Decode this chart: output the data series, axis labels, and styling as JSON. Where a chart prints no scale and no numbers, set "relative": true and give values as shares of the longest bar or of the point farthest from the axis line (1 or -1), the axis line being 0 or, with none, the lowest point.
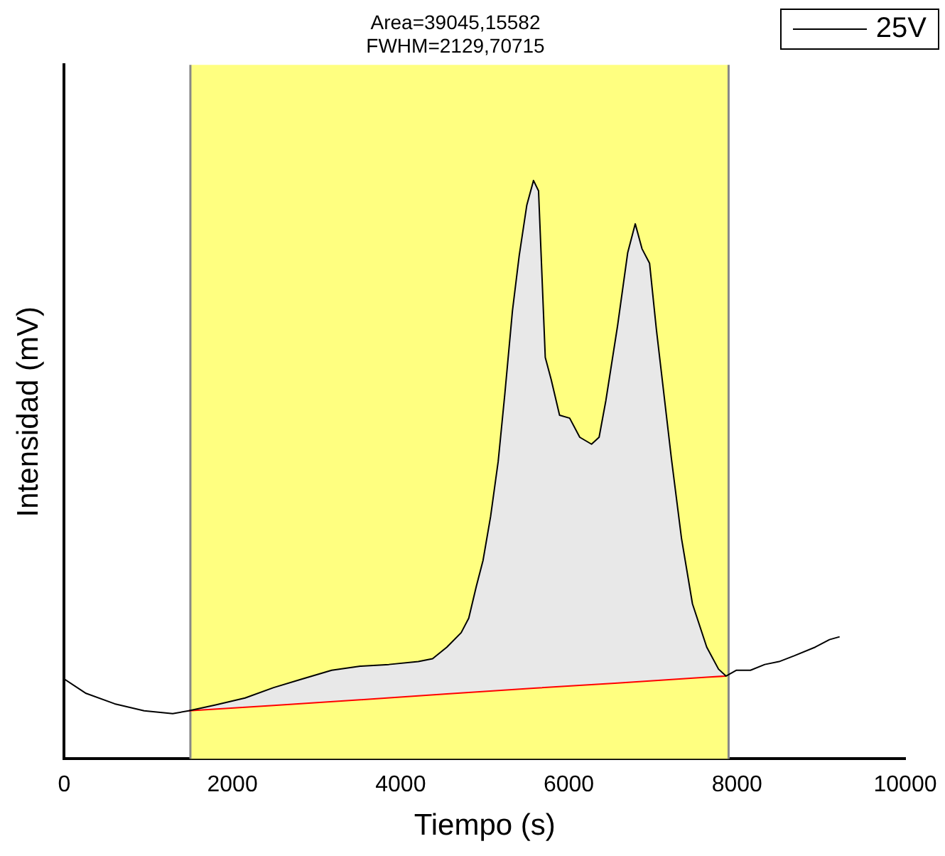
{
  "chart_data": {
    "type": "line",
    "annotations": [
      "Area=39045,15582",
      "FWHM=2129,70715"
    ],
    "xlabel": "Tiempo (s)",
    "ylabel": "Intensidad (mV)",
    "relative": true,
    "xlim": [
      0,
      10000
    ],
    "xticks": [
      0,
      2000,
      4000,
      6000,
      8000,
      10000
    ],
    "grid": false,
    "legend": "top right",
    "marker": "none",
    "bands": [
      {
        "axis": "x",
        "from": 1500,
        "to": 7900,
        "color": "#ffff80"
      }
    ],
    "ref_lines": [
      {
        "axis": "x",
        "value": 1500,
        "color": "#888888"
      },
      {
        "axis": "x",
        "value": 7900,
        "color": "#888888"
      }
    ],
    "series": [
      {
        "name": "25V",
        "color": "#000000",
        "x": [
          0,
          260,
          600,
          950,
          1290,
          1480,
          1800,
          2150,
          2490,
          2830,
          3180,
          3520,
          3860,
          4210,
          4380,
          4550,
          4720,
          4810,
          4900,
          4980,
          5070,
          5160,
          5240,
          5330,
          5410,
          5500,
          5580,
          5640,
          5720,
          5790,
          5890,
          6010,
          6130,
          6270,
          6360,
          6440,
          6580,
          6700,
          6790,
          6870,
          6960,
          7040,
          7220,
          7340,
          7470,
          7640,
          7780,
          7870,
          7990,
          8160,
          8330,
          8500,
          8680,
          8930,
          9100,
          9220
        ],
        "values": [
          0.138,
          0.113,
          0.095,
          0.083,
          0.078,
          0.083,
          0.093,
          0.105,
          0.123,
          0.138,
          0.153,
          0.16,
          0.163,
          0.168,
          0.173,
          0.193,
          0.218,
          0.243,
          0.298,
          0.343,
          0.419,
          0.514,
          0.632,
          0.775,
          0.87,
          0.957,
          1.0,
          0.982,
          0.694,
          0.656,
          0.594,
          0.589,
          0.556,
          0.544,
          0.556,
          0.619,
          0.749,
          0.875,
          0.925,
          0.882,
          0.857,
          0.744,
          0.519,
          0.381,
          0.268,
          0.193,
          0.155,
          0.143,
          0.153,
          0.153,
          0.163,
          0.168,
          0.178,
          0.193,
          0.206,
          0.211
        ]
      },
      {
        "type": "area",
        "color": "#e8e8e8",
        "x": [
          1480,
          1800,
          2150,
          2490,
          2830,
          3180,
          3520,
          3860,
          4210,
          4380,
          4550,
          4720,
          4810,
          4900,
          4980,
          5070,
          5160,
          5240,
          5330,
          5410,
          5500,
          5580,
          5640,
          5720,
          5790,
          5890,
          6010,
          6130,
          6270,
          6360,
          6440,
          6580,
          6700,
          6790,
          6870,
          6960,
          7040,
          7220,
          7340,
          7470,
          7640,
          7780,
          7870
        ],
        "values": [
          0.083,
          0.093,
          0.105,
          0.123,
          0.138,
          0.153,
          0.16,
          0.163,
          0.168,
          0.173,
          0.193,
          0.218,
          0.243,
          0.298,
          0.343,
          0.419,
          0.514,
          0.632,
          0.775,
          0.87,
          0.957,
          1.0,
          0.982,
          0.694,
          0.656,
          0.594,
          0.589,
          0.556,
          0.544,
          0.556,
          0.619,
          0.749,
          0.875,
          0.925,
          0.882,
          0.857,
          0.744,
          0.519,
          0.381,
          0.268,
          0.193,
          0.155,
          0.143
        ]
      },
      {
        "type": "line",
        "color": "#ff0000",
        "x": [
          1480,
          2490,
          3520,
          4550,
          5580,
          6580,
          7640,
          7870
        ],
        "values": [
          0.083,
          0.092,
          0.102,
          0.112,
          0.122,
          0.131,
          0.141,
          0.143
        ]
      }
    ]
  }
}
